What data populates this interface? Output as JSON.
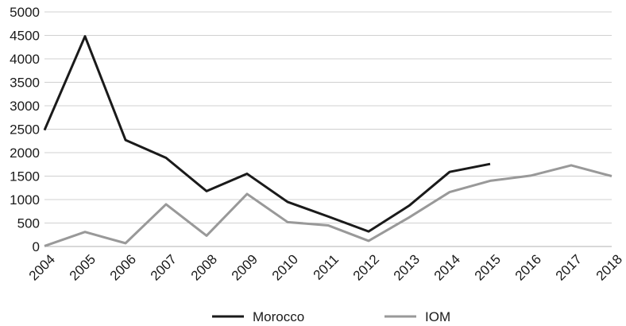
{
  "chart_data": {
    "type": "line",
    "x": [
      "2004",
      "2005",
      "2006",
      "2007",
      "2008",
      "2009",
      "2010",
      "2011",
      "2012",
      "2013",
      "2014",
      "2015",
      "2016",
      "2017",
      "2018"
    ],
    "y_ticks": [
      "0",
      "500",
      "1000",
      "1500",
      "2000",
      "2500",
      "3000",
      "3500",
      "4000",
      "4500",
      "5000"
    ],
    "ylim": [
      0,
      5000
    ],
    "grid": true,
    "legend": "bottom",
    "title": "",
    "xlabel": "",
    "ylabel": "",
    "series": [
      {
        "name": "Morocco",
        "color": "#1a1a1a",
        "values": [
          2480,
          4480,
          2270,
          1890,
          1180,
          1550,
          950,
          640,
          320,
          870,
          1590,
          1760,
          null,
          null,
          null
        ]
      },
      {
        "name": "IOM",
        "color": "#999999",
        "values": [
          10,
          310,
          70,
          900,
          230,
          1120,
          520,
          450,
          120,
          620,
          1160,
          1400,
          1510,
          1730,
          1500
        ]
      }
    ]
  }
}
